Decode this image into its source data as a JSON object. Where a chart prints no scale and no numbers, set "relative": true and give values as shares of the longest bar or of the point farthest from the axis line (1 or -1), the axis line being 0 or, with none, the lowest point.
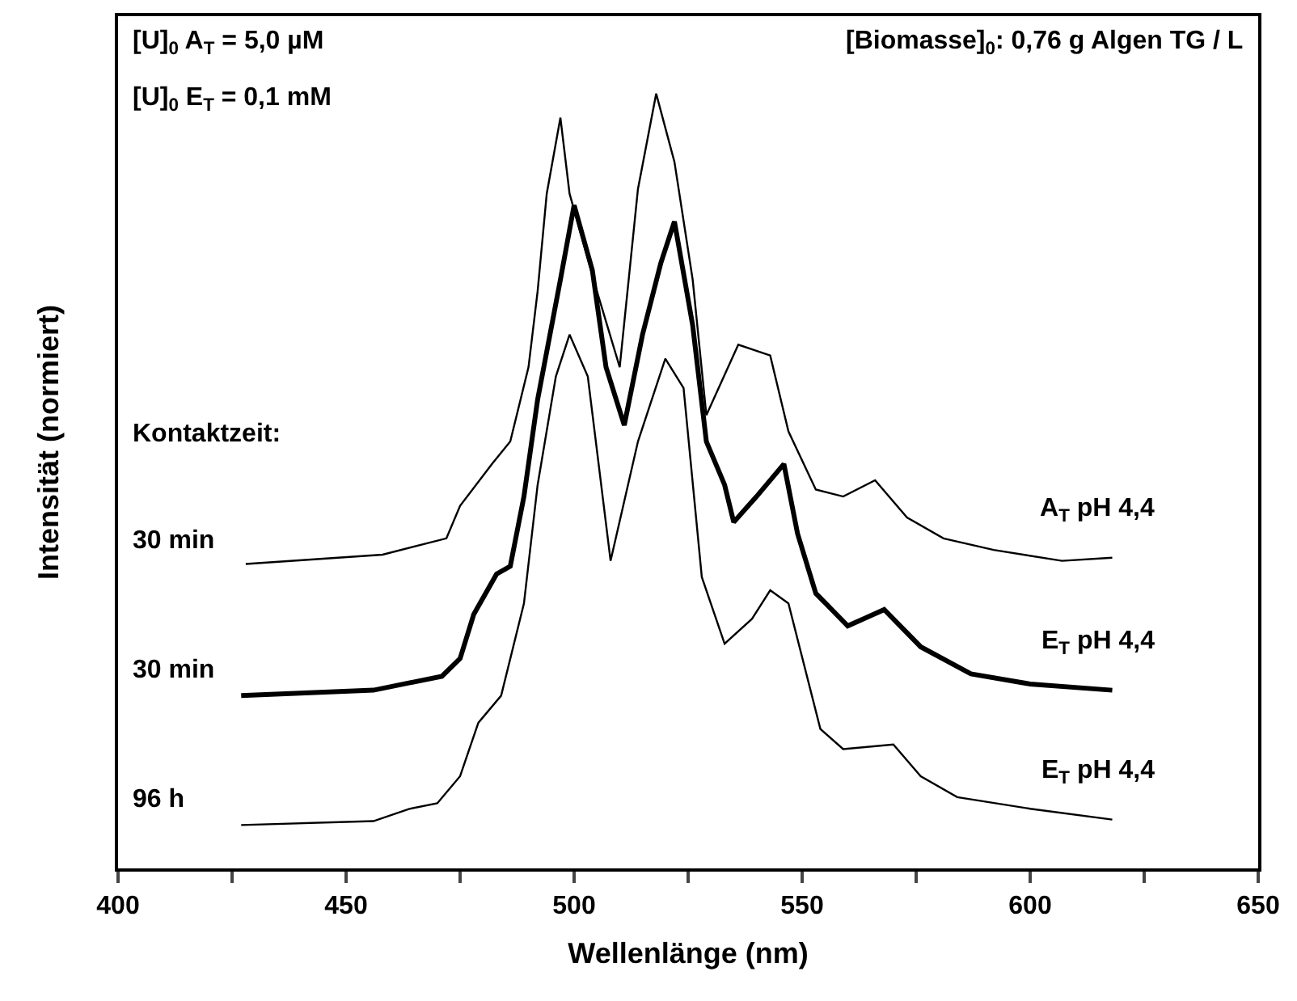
{
  "chart_data": {
    "type": "line",
    "relative": true,
    "xlabel": "Wellenlänge (nm)",
    "ylabel": "Intensität (normiert)",
    "xlim": [
      400,
      650
    ],
    "xticks": [
      400,
      {
        "value": 425,
        "label": null
      },
      450,
      {
        "value": 475,
        "label": null
      },
      500,
      {
        "value": 525,
        "label": null
      },
      550,
      {
        "value": 575,
        "label": null
      },
      600,
      {
        "value": 625,
        "label": null
      },
      650
    ],
    "legend": false,
    "marker": "none",
    "line_style": "solid",
    "annotations": [
      "[U]$_{0}$ A$_{T}$ = 5,0 µM",
      "[U]$_{0}$ E$_{T}$ = 0,1 mM",
      "[Biomasse]$_{0}$: 0,76 g Algen TG / L",
      "Kontaktzeit:",
      "30 min",
      "30 min",
      "96 h"
    ],
    "series": [
      {
        "name": "A$_{T}$ pH 4,4",
        "color": "#000000",
        "x": [
          428,
          458,
          472,
          475,
          482,
          486,
          490,
          492,
          494,
          497,
          499,
          505,
          510,
          514,
          518,
          522,
          526,
          529,
          536,
          543,
          547,
          553,
          559,
          566,
          573,
          581,
          592,
          607,
          618
        ],
        "values": [
          0.393,
          0.405,
          0.426,
          0.468,
          0.522,
          0.551,
          0.647,
          0.745,
          0.871,
          0.969,
          0.871,
          0.745,
          0.647,
          0.877,
          1.0,
          0.912,
          0.76,
          0.585,
          0.676,
          0.662,
          0.564,
          0.489,
          0.48,
          0.501,
          0.453,
          0.426,
          0.411,
          0.397,
          0.401
        ]
      },
      {
        "name": "E$_{T}$ pH 4,4",
        "color": "#000000",
        "x": [
          427,
          456,
          471,
          475,
          478,
          483,
          486,
          489,
          492,
          497,
          500,
          504,
          507,
          511,
          515,
          519,
          522,
          526,
          529,
          533,
          535,
          540,
          546,
          549,
          553,
          560,
          568,
          576,
          587,
          600,
          618
        ],
        "values": [
          0.223,
          0.23,
          0.248,
          0.271,
          0.328,
          0.38,
          0.39,
          0.48,
          0.605,
          0.76,
          0.856,
          0.772,
          0.647,
          0.572,
          0.689,
          0.781,
          0.835,
          0.701,
          0.551,
          0.495,
          0.447,
          0.48,
          0.522,
          0.432,
          0.355,
          0.313,
          0.334,
          0.286,
          0.251,
          0.238,
          0.23
        ]
      },
      {
        "name": "E$_{T}$ pH 4,4",
        "color": "#000000",
        "x": [
          427,
          456,
          464,
          470,
          475,
          479,
          484,
          489,
          492,
          496,
          499,
          503,
          508,
          514,
          520,
          524,
          528,
          533,
          539,
          543,
          547,
          554,
          559,
          570,
          576,
          584,
          600,
          618
        ],
        "values": [
          0.056,
          0.061,
          0.077,
          0.084,
          0.119,
          0.188,
          0.223,
          0.342,
          0.495,
          0.635,
          0.689,
          0.635,
          0.397,
          0.551,
          0.658,
          0.62,
          0.376,
          0.29,
          0.322,
          0.359,
          0.342,
          0.18,
          0.154,
          0.16,
          0.119,
          0.092,
          0.077,
          0.063
        ]
      }
    ]
  }
}
